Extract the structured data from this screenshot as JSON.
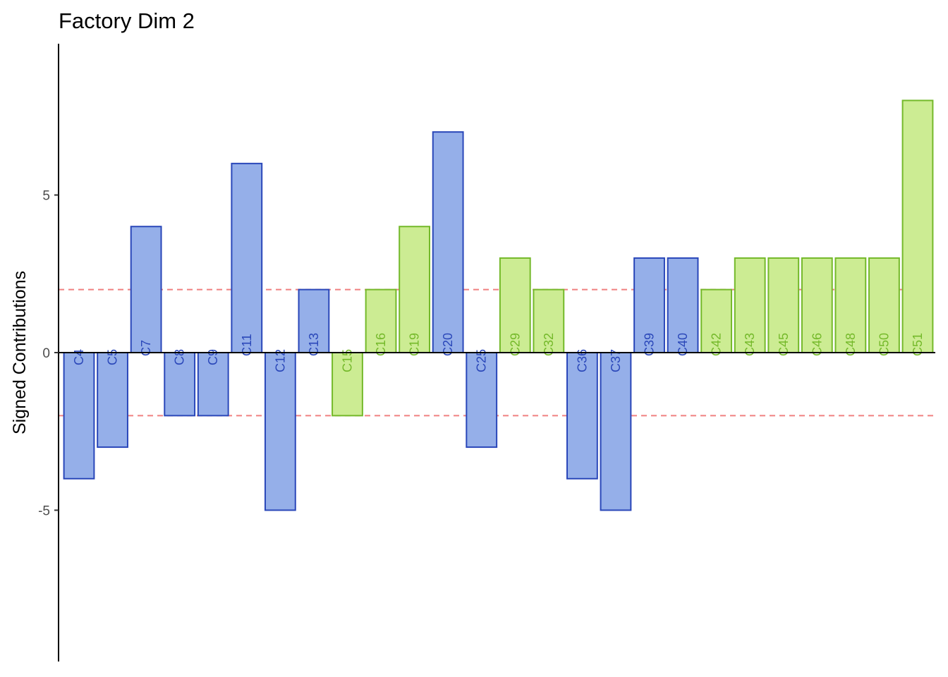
{
  "chart_data": {
    "type": "bar",
    "title": "Factory Dim 2",
    "xlabel": "",
    "ylabel": "Signed Contributions",
    "ylim": [
      -9.8,
      9.8
    ],
    "yticks": [
      {
        "value": 5,
        "label": "5"
      },
      {
        "value": 0,
        "label": "0"
      },
      {
        "value": -5,
        "label": "-5"
      }
    ],
    "threshold_lines": [
      2,
      -2
    ],
    "grid": false,
    "legend": "none",
    "colors": {
      "blue_fill": "#95afe9",
      "blue_stroke": "#2a47b9",
      "blue_text": "#2a47b9",
      "green_fill": "#ccec93",
      "green_stroke": "#74b92a",
      "green_text": "#74b92a",
      "threshold": "#f08080",
      "axis": "#000000"
    },
    "categories": [
      "C4",
      "C5",
      "C7",
      "C8",
      "C9",
      "C11",
      "C12",
      "C13",
      "C15",
      "C16",
      "C19",
      "C20",
      "C25",
      "C29",
      "C32",
      "C36",
      "C37",
      "C39",
      "C40",
      "C42",
      "C43",
      "C45",
      "C46",
      "C48",
      "C50",
      "C51"
    ],
    "values": [
      -4,
      -3,
      4,
      -2,
      -2,
      6,
      -5,
      2,
      -2,
      2,
      4,
      7,
      -3,
      3,
      2,
      -4,
      -5,
      3,
      3,
      2,
      3,
      3,
      3,
      3,
      3,
      8
    ],
    "groups": [
      "blue",
      "blue",
      "blue",
      "blue",
      "blue",
      "blue",
      "blue",
      "blue",
      "green",
      "green",
      "green",
      "blue",
      "blue",
      "green",
      "green",
      "blue",
      "blue",
      "blue",
      "blue",
      "green",
      "green",
      "green",
      "green",
      "green",
      "green",
      "green"
    ]
  }
}
